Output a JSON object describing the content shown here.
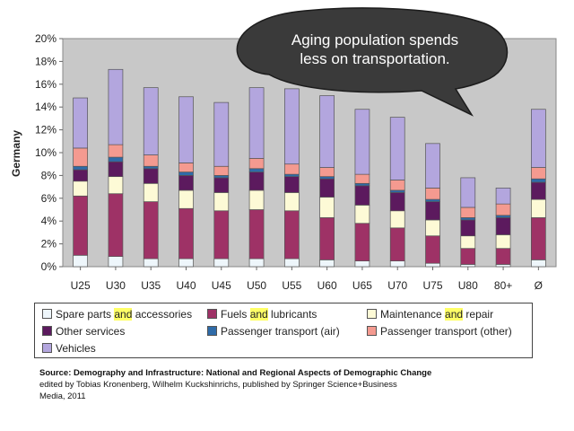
{
  "chart_data": {
    "type": "bar",
    "stacked": true,
    "ylabel": "Germany",
    "ylim": [
      0,
      20
    ],
    "yticks": [
      "0%",
      "2%",
      "4%",
      "6%",
      "8%",
      "10%",
      "12%",
      "14%",
      "16%",
      "18%",
      "20%"
    ],
    "categories": [
      "U25",
      "U30",
      "U35",
      "U40",
      "U45",
      "U50",
      "U55",
      "U60",
      "U65",
      "U70",
      "U75",
      "U80",
      "80+",
      "Ø"
    ],
    "series": [
      {
        "name": "Spare parts and accessories",
        "color": "#eef6fb",
        "values": [
          1.0,
          0.9,
          0.7,
          0.7,
          0.7,
          0.7,
          0.7,
          0.6,
          0.5,
          0.5,
          0.3,
          0.2,
          0.2,
          0.6
        ]
      },
      {
        "name": "Fuels and lubricants",
        "color": "#9e3266",
        "values": [
          5.2,
          5.5,
          5.0,
          4.4,
          4.2,
          4.3,
          4.2,
          3.7,
          3.3,
          2.9,
          2.4,
          1.4,
          1.4,
          3.7
        ]
      },
      {
        "name": "Maintenance and repair",
        "color": "#fdfad6",
        "values": [
          1.3,
          1.5,
          1.6,
          1.6,
          1.6,
          1.7,
          1.6,
          1.8,
          1.6,
          1.5,
          1.4,
          1.1,
          1.2,
          1.6
        ]
      },
      {
        "name": "Other services",
        "color": "#5c1a5e",
        "values": [
          1.0,
          1.3,
          1.3,
          1.3,
          1.3,
          1.6,
          1.4,
          1.6,
          1.7,
          1.6,
          1.6,
          1.4,
          1.5,
          1.5
        ]
      },
      {
        "name": "Passenger transport (air)",
        "color": "#2f6ba8",
        "values": [
          0.3,
          0.4,
          0.2,
          0.3,
          0.2,
          0.3,
          0.2,
          0.2,
          0.2,
          0.2,
          0.2,
          0.2,
          0.2,
          0.3
        ]
      },
      {
        "name": "Passenger transport (other)",
        "color": "#f49a90",
        "values": [
          1.6,
          1.1,
          1.0,
          0.8,
          0.8,
          0.9,
          0.9,
          0.8,
          0.8,
          0.9,
          1.0,
          0.9,
          1.0,
          1.0
        ]
      },
      {
        "name": "Vehicles",
        "color": "#b3a6de",
        "values": [
          4.4,
          6.6,
          5.9,
          5.8,
          5.6,
          6.2,
          6.6,
          6.3,
          5.7,
          5.5,
          3.9,
          2.6,
          1.4,
          5.1
        ]
      }
    ],
    "legend_placement": "bottom",
    "grid": false
  },
  "bubble": {
    "line1": "Aging population spends",
    "line2": "less on transportation."
  },
  "legend": {
    "spare": {
      "pre": "Spare parts ",
      "hl": "and",
      "post": " accessories"
    },
    "fuels": {
      "pre": "Fuels ",
      "hl": "and",
      "post": " lubricants"
    },
    "maint": {
      "pre": "Maintenance ",
      "hl": "and",
      "post": " repair"
    },
    "other_services": "Other services",
    "air": "Passenger transport (air)",
    "pt_other": "Passenger transport (other)",
    "vehicles": "Vehicles"
  },
  "source": {
    "line1": "Source: Demography and Infrastructure: National and Regional Aspects of Demographic Change",
    "line2": "edited by Tobias Kronenberg, Wilhelm Kuckshinrichs, published by Springer Science+Business",
    "line3": "Media, 2011"
  }
}
